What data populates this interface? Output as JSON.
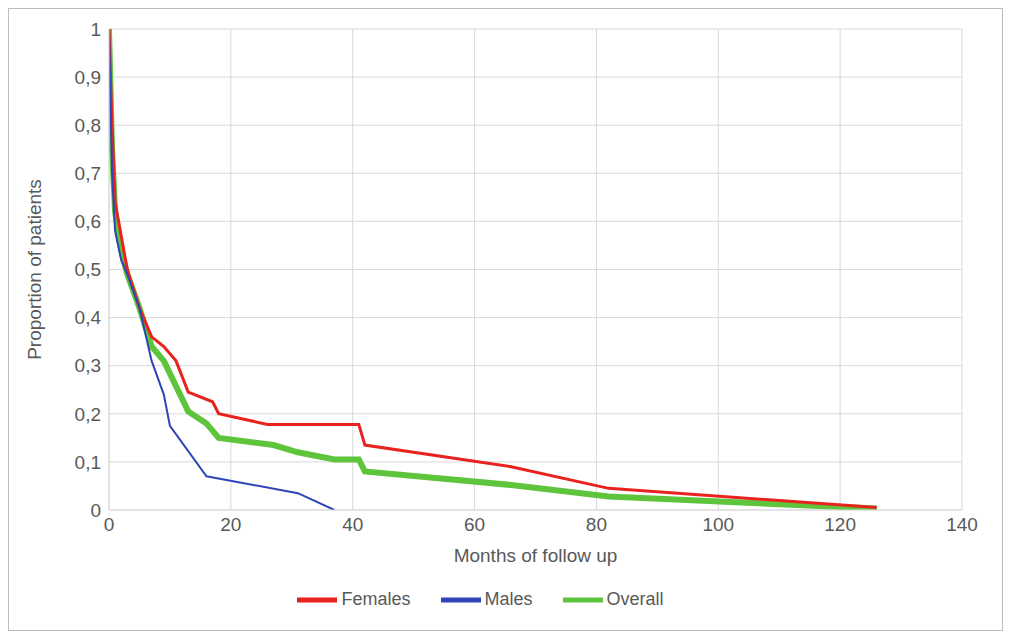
{
  "chart_data": {
    "type": "line",
    "x_label": "Months of follow up",
    "y_label": "Proportion of patients",
    "xlim": [
      0,
      140
    ],
    "xticks": [
      0,
      20,
      40,
      60,
      80,
      100,
      120,
      140
    ],
    "ylim": [
      0,
      1
    ],
    "yticks": [
      0,
      {
        "value": 0.1,
        "label": "0,1"
      },
      {
        "value": 0.2,
        "label": "0,2"
      },
      {
        "value": 0.3,
        "label": "0,3"
      },
      {
        "value": 0.4,
        "label": "0,4"
      },
      {
        "value": 0.5,
        "label": "0,5"
      },
      {
        "value": 0.6,
        "label": "0,6"
      },
      {
        "value": 0.7,
        "label": "0,7"
      },
      {
        "value": 0.8,
        "label": "0,8"
      },
      {
        "value": 0.9,
        "label": "0,9"
      },
      1
    ],
    "grid": true,
    "legend": "bottom",
    "series": [
      {
        "name": "Overall",
        "color": "#5ec43c",
        "x": [
          0,
          0.5,
          1,
          2,
          3,
          5,
          7,
          9,
          13,
          16,
          18,
          27,
          31,
          37,
          41,
          42,
          66,
          82,
          126
        ],
        "values": [
          1,
          0.75,
          0.62,
          0.54,
          0.49,
          0.42,
          0.34,
          0.31,
          0.205,
          0.18,
          0.15,
          0.135,
          0.12,
          0.105,
          0.105,
          0.08,
          0.052,
          0.028,
          0.003
        ]
      },
      {
        "name": "Females",
        "color": "#e8231f",
        "x": [
          0,
          0.5,
          1,
          2,
          3,
          5,
          7,
          9,
          11,
          13,
          17,
          18,
          26,
          41,
          42,
          66,
          82,
          126
        ],
        "values": [
          1,
          0.8,
          0.64,
          0.57,
          0.5,
          0.42,
          0.36,
          0.34,
          0.31,
          0.245,
          0.225,
          0.2,
          0.178,
          0.178,
          0.135,
          0.09,
          0.045,
          0.005
        ]
      },
      {
        "name": "Males",
        "color": "#2e45b8",
        "x": [
          0,
          0.5,
          1,
          2,
          3,
          5,
          7,
          9,
          10,
          16,
          31,
          37
        ],
        "values": [
          1,
          0.7,
          0.58,
          0.52,
          0.49,
          0.42,
          0.31,
          0.24,
          0.175,
          0.07,
          0.035,
          0
        ]
      }
    ]
  }
}
